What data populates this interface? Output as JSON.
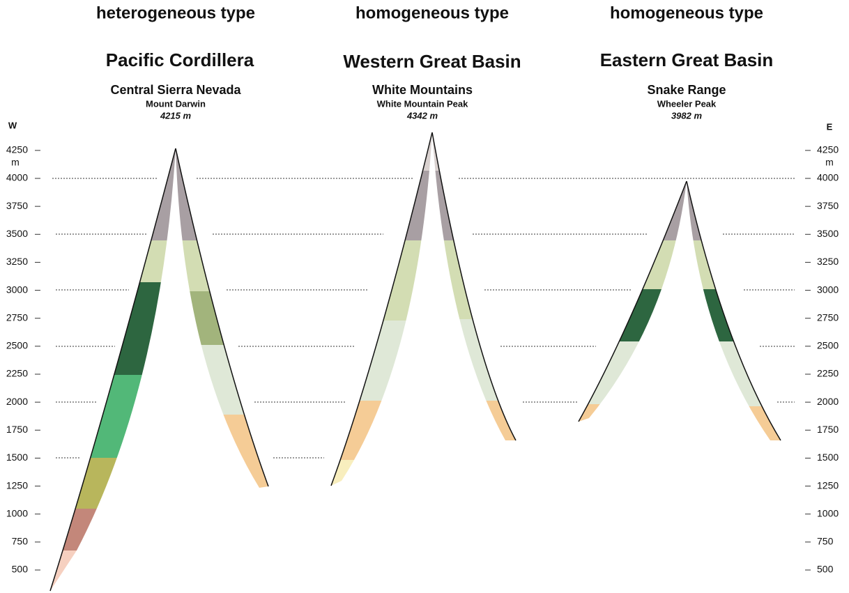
{
  "columns": [
    {
      "type": "heterogeneous type",
      "region": "Pacific Cordillera",
      "range": "Central Sierra Nevada",
      "peak": "Mount Darwin",
      "elevation": "4215 m"
    },
    {
      "type": "homogeneous type",
      "region": "Western Great Basin",
      "range": "White Mountains",
      "peak": "White Mountain Peak",
      "elevation": "4342 m"
    },
    {
      "type": "homogeneous type",
      "region": "Eastern Great Basin",
      "range": "Snake Range",
      "peak": "Wheeler Peak",
      "elevation": "3982 m"
    }
  ],
  "axis": {
    "west": "W",
    "east": "E",
    "unit": "m",
    "ticks": [
      4250,
      4000,
      3750,
      3500,
      3250,
      3000,
      2750,
      2500,
      2250,
      2000,
      1750,
      1500,
      1250,
      1000,
      750,
      500
    ]
  }
}
